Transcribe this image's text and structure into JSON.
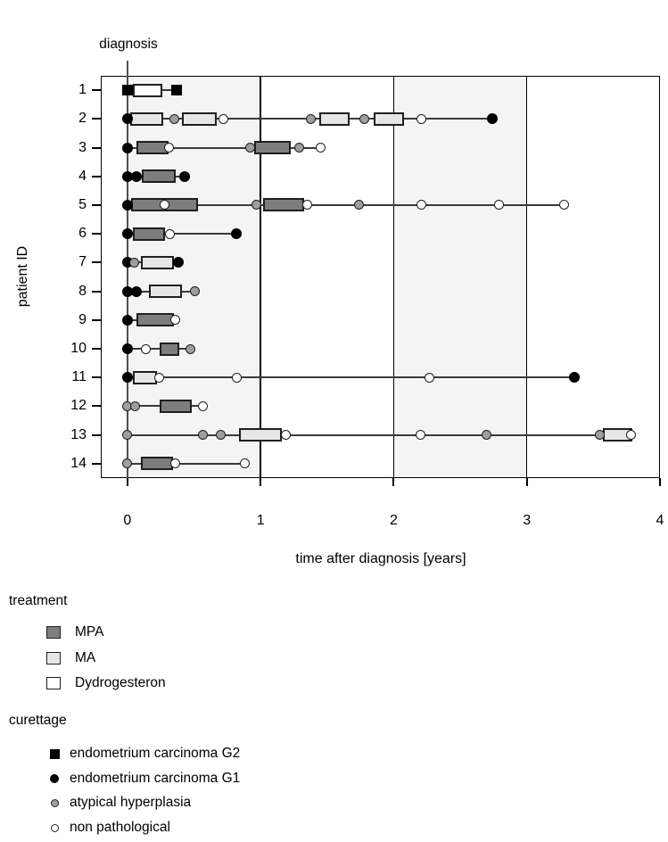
{
  "figure": {
    "diagnosis_label": "diagnosis",
    "x_axis_label": "time after diagnosis [years]",
    "y_axis_label": "patient ID"
  },
  "legend_treatment": {
    "title": "treatment",
    "items": [
      {
        "label": "MPA",
        "color": "#7d7d7d"
      },
      {
        "label": "MA",
        "color": "#e6e6e6"
      },
      {
        "label": "Dydrogesteron",
        "color": "#ffffff"
      }
    ]
  },
  "legend_curettage": {
    "title": "curettage",
    "items": [
      {
        "label": "endometrium carcinoma G2",
        "marker": "filled-square",
        "color": "#000000"
      },
      {
        "label": "endometrium carcinoma G1",
        "marker": "filled-circle",
        "color": "#000000"
      },
      {
        "label": "atypical hyperplasia",
        "marker": "open-circle",
        "color": "#9e9e9e"
      },
      {
        "label": "non pathological",
        "marker": "open-circle",
        "color": "#ffffff"
      }
    ]
  },
  "chart_data": {
    "type": "timeline",
    "title": "",
    "xlabel": "time after diagnosis [years]",
    "ylabel": "patient ID",
    "xlim": [
      -0.2,
      4.0
    ],
    "xticks": [
      0,
      1,
      2,
      3,
      4
    ],
    "yticks": [
      1,
      2,
      3,
      4,
      5,
      6,
      7,
      8,
      9,
      10,
      11,
      12,
      13,
      14
    ],
    "gridlines_x": [
      1,
      2,
      3
    ],
    "shaded_bands_x": [
      [
        0,
        1
      ],
      [
        2,
        3
      ]
    ],
    "band_color": "#f4f4f4",
    "diagnosis_line_x": 0,
    "annotation": "diagnosis",
    "legend_position": "below",
    "treatment_fill": {
      "MPA": "#7d7d7d",
      "MA": "#e6e6e6",
      "Dydrogesteron": "#ffffff"
    },
    "curettage_key": {
      "G2": "endometrium carcinoma G2",
      "G1": "endometrium carcinoma G1",
      "AH": "atypical hyperplasia",
      "NP": "non pathological"
    },
    "patients": [
      {
        "id": 1,
        "treatments": [
          {
            "drug": "Dydrogesteron",
            "start": 0.04,
            "end": 0.26
          }
        ],
        "curettage": [
          {
            "t": 0,
            "result": "G2"
          },
          {
            "t": 0.37,
            "result": "G2"
          }
        ]
      },
      {
        "id": 2,
        "treatments": [
          {
            "drug": "MA",
            "start": 0.02,
            "end": 0.27
          },
          {
            "drug": "MA",
            "start": 0.41,
            "end": 0.67
          },
          {
            "drug": "MA",
            "start": 1.44,
            "end": 1.67
          },
          {
            "drug": "MA",
            "start": 1.85,
            "end": 2.08
          }
        ],
        "curettage": [
          {
            "t": 0,
            "result": "G1"
          },
          {
            "t": 0.35,
            "result": "AH"
          },
          {
            "t": 0.72,
            "result": "NP"
          },
          {
            "t": 1.38,
            "result": "AH"
          },
          {
            "t": 1.78,
            "result": "AH"
          },
          {
            "t": 2.21,
            "result": "NP"
          },
          {
            "t": 2.74,
            "result": "G1"
          }
        ]
      },
      {
        "id": 3,
        "treatments": [
          {
            "drug": "MPA",
            "start": 0.07,
            "end": 0.31
          },
          {
            "drug": "MPA",
            "start": 0.95,
            "end": 1.23
          }
        ],
        "curettage": [
          {
            "t": 0,
            "result": "G1"
          },
          {
            "t": 0.31,
            "result": "NP"
          },
          {
            "t": 0.92,
            "result": "AH"
          },
          {
            "t": 1.29,
            "result": "AH"
          },
          {
            "t": 1.45,
            "result": "NP"
          }
        ]
      },
      {
        "id": 4,
        "treatments": [
          {
            "drug": "MPA",
            "start": 0.11,
            "end": 0.36
          }
        ],
        "curettage": [
          {
            "t": 0,
            "result": "G1"
          },
          {
            "t": 0.07,
            "result": "G1"
          },
          {
            "t": 0.43,
            "result": "G1"
          }
        ]
      },
      {
        "id": 5,
        "treatments": [
          {
            "drug": "MPA",
            "start": 0.03,
            "end": 0.53
          },
          {
            "drug": "MPA",
            "start": 1.02,
            "end": 1.33
          }
        ],
        "curettage": [
          {
            "t": 0,
            "result": "G1"
          },
          {
            "t": 0.28,
            "result": "NP"
          },
          {
            "t": 0.97,
            "result": "AH"
          },
          {
            "t": 1.35,
            "result": "NP"
          },
          {
            "t": 1.74,
            "result": "AH"
          },
          {
            "t": 2.21,
            "result": "NP"
          },
          {
            "t": 2.79,
            "result": "NP"
          },
          {
            "t": 3.28,
            "result": "NP"
          }
        ]
      },
      {
        "id": 6,
        "treatments": [
          {
            "drug": "MPA",
            "start": 0.04,
            "end": 0.28
          }
        ],
        "curettage": [
          {
            "t": 0,
            "result": "G1"
          },
          {
            "t": 0.32,
            "result": "NP"
          },
          {
            "t": 0.82,
            "result": "G1"
          }
        ]
      },
      {
        "id": 7,
        "treatments": [
          {
            "drug": "MA",
            "start": 0.1,
            "end": 0.35
          }
        ],
        "curettage": [
          {
            "t": 0,
            "result": "G1"
          },
          {
            "t": 0.05,
            "result": "AH"
          },
          {
            "t": 0.38,
            "result": "G1"
          }
        ]
      },
      {
        "id": 8,
        "treatments": [
          {
            "drug": "MA",
            "start": 0.16,
            "end": 0.41
          }
        ],
        "curettage": [
          {
            "t": 0,
            "result": "G1"
          },
          {
            "t": 0.07,
            "result": "G1"
          },
          {
            "t": 0.51,
            "result": "AH"
          }
        ]
      },
      {
        "id": 9,
        "treatments": [
          {
            "drug": "MPA",
            "start": 0.07,
            "end": 0.35
          }
        ],
        "curettage": [
          {
            "t": 0,
            "result": "G1"
          },
          {
            "t": 0.36,
            "result": "NP"
          }
        ]
      },
      {
        "id": 10,
        "treatments": [
          {
            "drug": "MPA",
            "start": 0.24,
            "end": 0.39
          }
        ],
        "curettage": [
          {
            "t": 0,
            "result": "G1"
          },
          {
            "t": 0.14,
            "result": "NP"
          },
          {
            "t": 0.47,
            "result": "AH"
          }
        ]
      },
      {
        "id": 11,
        "treatments": [
          {
            "drug": "MA",
            "start": 0.04,
            "end": 0.22
          }
        ],
        "curettage": [
          {
            "t": 0,
            "result": "G1"
          },
          {
            "t": 0.24,
            "result": "NP"
          },
          {
            "t": 0.82,
            "result": "NP"
          },
          {
            "t": 2.27,
            "result": "NP"
          },
          {
            "t": 3.36,
            "result": "G1"
          }
        ]
      },
      {
        "id": 12,
        "treatments": [
          {
            "drug": "MPA",
            "start": 0.24,
            "end": 0.48
          }
        ],
        "curettage": [
          {
            "t": 0,
            "result": "AH"
          },
          {
            "t": 0.06,
            "result": "AH"
          },
          {
            "t": 0.57,
            "result": "NP"
          }
        ]
      },
      {
        "id": 13,
        "treatments": [
          {
            "drug": "MA",
            "start": 0.84,
            "end": 1.16
          },
          {
            "drug": "MA",
            "start": 3.57,
            "end": 3.79
          }
        ],
        "curettage": [
          {
            "t": 0,
            "result": "AH"
          },
          {
            "t": 0.57,
            "result": "AH"
          },
          {
            "t": 0.7,
            "result": "AH"
          },
          {
            "t": 1.19,
            "result": "NP"
          },
          {
            "t": 2.2,
            "result": "NP"
          },
          {
            "t": 2.7,
            "result": "AH"
          },
          {
            "t": 3.55,
            "result": "AH"
          },
          {
            "t": 3.78,
            "result": "NP"
          }
        ]
      },
      {
        "id": 14,
        "treatments": [
          {
            "drug": "MPA",
            "start": 0.1,
            "end": 0.34
          }
        ],
        "curettage": [
          {
            "t": 0,
            "result": "AH"
          },
          {
            "t": 0.36,
            "result": "NP"
          },
          {
            "t": 0.88,
            "result": "NP"
          }
        ]
      }
    ]
  }
}
